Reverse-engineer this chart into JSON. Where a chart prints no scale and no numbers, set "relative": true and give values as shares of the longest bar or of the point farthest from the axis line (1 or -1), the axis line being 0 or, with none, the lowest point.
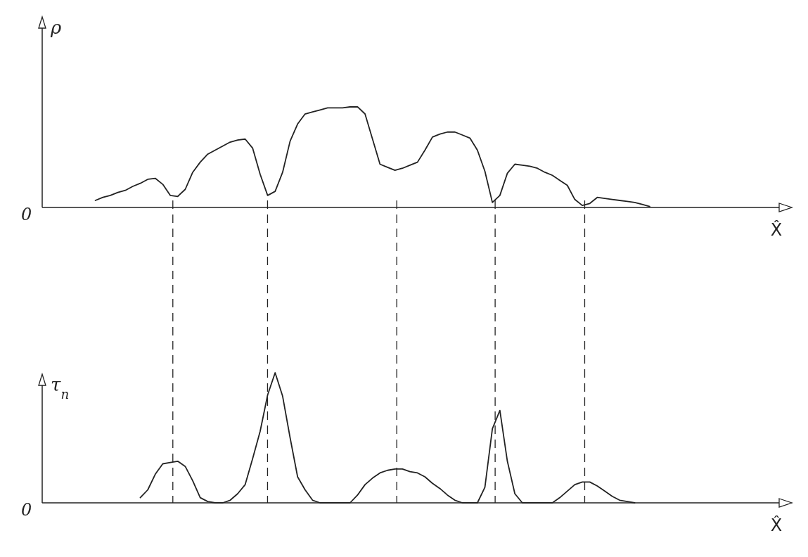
{
  "chart_data": [
    {
      "type": "line",
      "relative": true,
      "color": "#222222",
      "ylabel": "ρ",
      "xlabel": "X̂",
      "annotations": [
        "0"
      ],
      "categories": [
        null,
        null,
        null,
        null,
        null,
        null,
        null,
        null,
        null,
        null,
        null,
        null,
        null,
        null,
        null,
        null,
        null,
        null,
        null,
        null,
        null,
        null,
        null,
        null,
        null,
        null,
        null,
        null,
        null,
        null,
        null,
        null,
        null,
        null,
        null,
        null,
        null,
        null,
        null,
        null,
        null,
        null,
        null,
        null,
        null,
        null,
        null,
        null,
        null,
        null,
        null,
        null,
        null,
        null,
        null,
        null,
        null,
        null,
        null,
        null,
        null,
        null,
        null,
        null,
        null,
        null,
        null,
        null,
        null,
        null,
        null,
        null,
        null,
        null,
        null,
        null,
        null,
        null,
        null,
        null,
        null,
        null,
        null,
        null,
        null,
        null,
        null,
        null,
        null,
        null,
        null,
        null,
        null,
        null,
        null,
        null,
        null,
        null,
        null
      ],
      "values": [
        null,
        null,
        null,
        null,
        null,
        null,
        null,
        0.07,
        0.1,
        0.12,
        0.15,
        0.17,
        0.21,
        0.24,
        0.28,
        0.29,
        0.23,
        0.12,
        0.11,
        0.18,
        0.35,
        0.45,
        0.53,
        0.57,
        0.61,
        0.65,
        0.67,
        0.68,
        0.59,
        0.33,
        0.12,
        0.16,
        0.35,
        0.66,
        0.83,
        0.93,
        0.95,
        0.97,
        0.99,
        0.99,
        0.99,
        1,
        1,
        0.93,
        0.68,
        0.43,
        0.4,
        0.37,
        0.39,
        0.42,
        0.45,
        0.57,
        0.7,
        0.73,
        0.75,
        0.75,
        0.72,
        0.69,
        0.57,
        0.36,
        0.05,
        0.12,
        0.34,
        0.43,
        0.42,
        0.41,
        0.39,
        0.35,
        0.32,
        0.27,
        0.22,
        0.08,
        0.02,
        0.04,
        0.1,
        0.09,
        0.08,
        0.07,
        0.06,
        0.05,
        0.03,
        0.01,
        null,
        null,
        null,
        null,
        null,
        null,
        null,
        null,
        null,
        null,
        null,
        null,
        null,
        null,
        null,
        null,
        null
      ]
    },
    {
      "type": "line",
      "relative": true,
      "color": "#222222",
      "ylabel": "τ$_{n}$",
      "xlabel": "X̂",
      "annotations": [
        "0"
      ],
      "categories": [
        null,
        null,
        null,
        null,
        null,
        null,
        null,
        null,
        null,
        null,
        null,
        null,
        null,
        null,
        null,
        null,
        null,
        null,
        null,
        null,
        null,
        null,
        null,
        null,
        null,
        null,
        null,
        null,
        null,
        null,
        null,
        null,
        null,
        null,
        null,
        null,
        null,
        null,
        null,
        null,
        null,
        null,
        null,
        null,
        null,
        null,
        null,
        null,
        null,
        null,
        null,
        null,
        null,
        null,
        null,
        null,
        null,
        null,
        null,
        null,
        null,
        null,
        null,
        null,
        null,
        null,
        null,
        null,
        null,
        null,
        null,
        null,
        null,
        null,
        null,
        null,
        null,
        null,
        null,
        null,
        null,
        null,
        null,
        null,
        null,
        null,
        null,
        null,
        null,
        null,
        null,
        null,
        null,
        null,
        null,
        null,
        null,
        null,
        null
      ],
      "values": [
        null,
        null,
        null,
        null,
        null,
        null,
        null,
        null,
        null,
        null,
        null,
        null,
        null,
        0.04,
        0.1,
        0.22,
        0.3,
        0.31,
        0.32,
        0.28,
        0.17,
        0.04,
        0.01,
        0,
        0,
        0.02,
        0.07,
        0.14,
        0.34,
        0.55,
        0.83,
        1,
        0.82,
        0.5,
        0.2,
        0.1,
        0.02,
        0,
        0,
        0,
        0,
        0,
        0.06,
        0.14,
        0.19,
        0.23,
        0.25,
        0.26,
        0.26,
        0.24,
        0.23,
        0.2,
        0.15,
        0.11,
        0.06,
        0.02,
        0,
        0,
        0,
        0.12,
        0.57,
        0.71,
        0.32,
        0.07,
        0,
        0,
        0,
        0,
        0,
        0.04,
        0.09,
        0.14,
        0.16,
        0.16,
        0.13,
        0.09,
        0.05,
        0.02,
        0.01,
        0,
        null,
        null,
        null,
        null,
        null,
        null,
        null,
        null,
        null,
        null,
        null,
        null,
        null,
        null,
        null,
        null,
        null,
        null,
        null
      ]
    }
  ]
}
